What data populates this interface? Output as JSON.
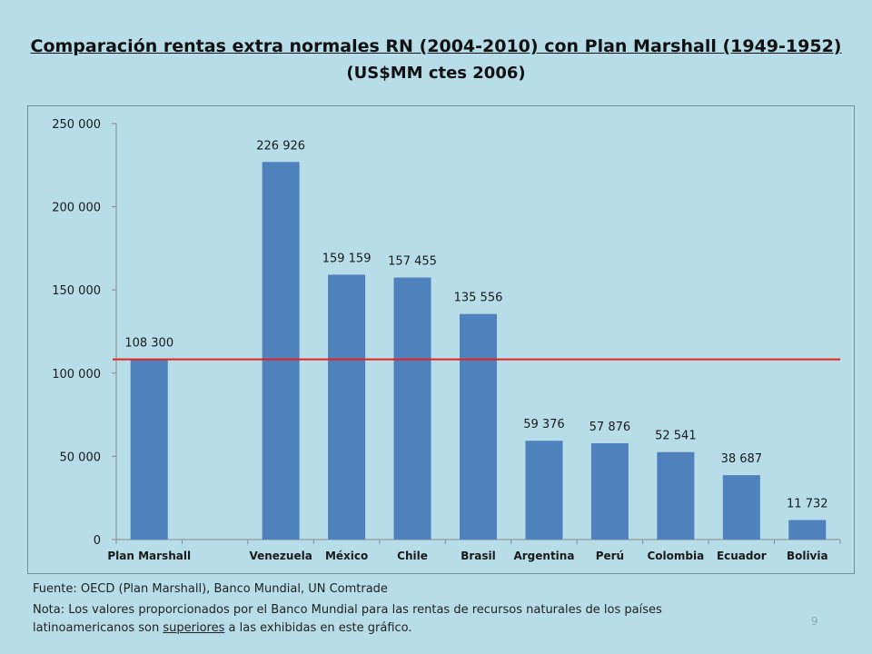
{
  "slide": {
    "title": "Comparación  rentas extra normales RN (2004-2010) con Plan Marshall (1949-1952)",
    "subtitle": "(US$MM ctes 2006)",
    "source": "Fuente: OECD (Plan Marshall), Banco Mundial, UN Comtrade",
    "note_line1": "Nota: Los valores proporcionados por el Banco Mundial para las rentas de recursos naturales de los países",
    "note_line2_pre": "latinoamericanos son ",
    "note_line2_underlined": "superiores",
    "note_line2_post": " a las exhibidas en este gráfico.",
    "page_number": "9"
  },
  "colors": {
    "bar": "#4f81bd",
    "reference_line": "#e8201c",
    "axis": "#8a8a8a"
  },
  "chart_data": {
    "type": "bar",
    "title": "",
    "xlabel": "",
    "ylabel": "",
    "ylim": [
      0,
      250000
    ],
    "yticks": [
      0,
      50000,
      100000,
      150000,
      200000,
      250000
    ],
    "ytick_labels": [
      "0",
      "50 000",
      "100 000",
      "150 000",
      "200 000",
      "250 000"
    ],
    "categories": [
      "Plan Marshall",
      "",
      "Venezuela",
      "México",
      "Chile",
      "Brasil",
      "Argentina",
      "Perú",
      "Colombia",
      "Ecuador",
      "Bolivia"
    ],
    "values": [
      108300,
      null,
      226926,
      159159,
      157455,
      135556,
      59376,
      57876,
      52541,
      38687,
      11732
    ],
    "data_labels": [
      "108 300",
      "",
      "226 926",
      "159 159",
      "157 455",
      "135 556",
      "59 376",
      "57 876",
      "52 541",
      "38 687",
      "11 732"
    ],
    "reference_line": {
      "value": 108300
    },
    "grid": false,
    "legend": "none"
  }
}
